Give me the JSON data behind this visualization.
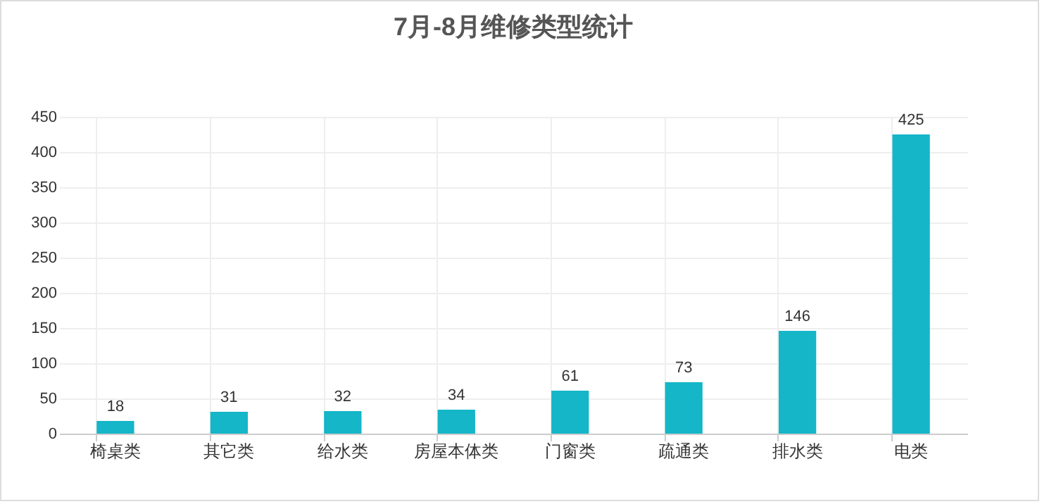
{
  "chart_data": {
    "type": "bar",
    "title": "7月-8月维修类型统计",
    "categories": [
      "椅桌类",
      "其它类",
      "给水类",
      "房屋本体类",
      "门窗类",
      "疏通类",
      "排水类",
      "电类"
    ],
    "values": [
      18,
      31,
      32,
      34,
      61,
      73,
      146,
      425
    ],
    "color": "#14b6c8",
    "ylim": [
      0,
      450
    ],
    "yticks": [
      0,
      50,
      100,
      150,
      200,
      250,
      300,
      350,
      400,
      450
    ],
    "grid": true,
    "data_labels": true
  }
}
